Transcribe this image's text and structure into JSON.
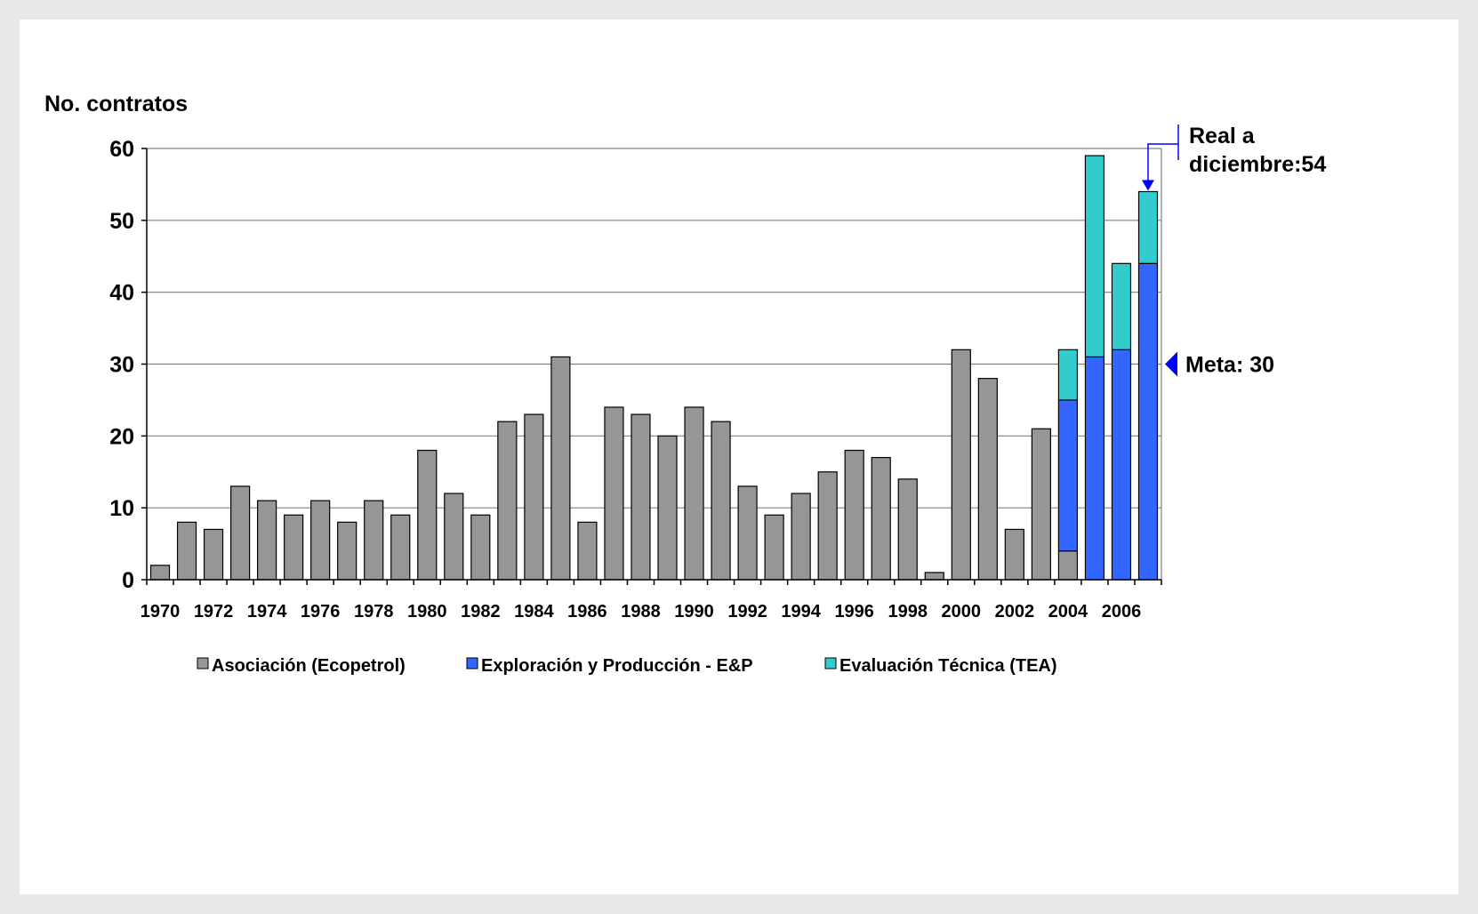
{
  "chart_data": {
    "type": "bar",
    "stacked": true,
    "ylabel": "No. contratos",
    "xlabel": "",
    "ylim": [
      0,
      60
    ],
    "yticks": [
      0,
      10,
      20,
      30,
      40,
      50,
      60
    ],
    "grid": true,
    "legend_position": "bottom",
    "categories": [
      1970,
      1971,
      1972,
      1973,
      1974,
      1975,
      1976,
      1977,
      1978,
      1979,
      1980,
      1981,
      1982,
      1983,
      1984,
      1985,
      1986,
      1987,
      1988,
      1989,
      1990,
      1991,
      1992,
      1993,
      1994,
      1995,
      1996,
      1997,
      1998,
      1999,
      2000,
      2001,
      2002,
      2003,
      2004,
      2005,
      2006,
      2007
    ],
    "xtick_labels": [
      "1970",
      "1972",
      "1974",
      "1976",
      "1978",
      "1980",
      "1982",
      "1984",
      "1986",
      "1988",
      "1990",
      "1992",
      "1994",
      "1996",
      "1998",
      "2000",
      "2002",
      "2004",
      "2006"
    ],
    "series": [
      {
        "name": "Asociación (Ecopetrol)",
        "color": "#969696",
        "values": [
          2,
          8,
          7,
          13,
          11,
          9,
          11,
          8,
          11,
          9,
          18,
          12,
          9,
          22,
          23,
          31,
          8,
          24,
          23,
          20,
          24,
          22,
          13,
          9,
          12,
          15,
          18,
          17,
          14,
          1,
          32,
          28,
          7,
          21,
          4,
          0,
          0,
          0
        ]
      },
      {
        "name": "Exploración y Producción - E&P",
        "color": "#3366ff",
        "values": [
          0,
          0,
          0,
          0,
          0,
          0,
          0,
          0,
          0,
          0,
          0,
          0,
          0,
          0,
          0,
          0,
          0,
          0,
          0,
          0,
          0,
          0,
          0,
          0,
          0,
          0,
          0,
          0,
          0,
          0,
          0,
          0,
          0,
          0,
          21,
          31,
          32,
          44
        ]
      },
      {
        "name": "Evaluación Técnica (TEA)",
        "color": "#33cccc",
        "values": [
          0,
          0,
          0,
          0,
          0,
          0,
          0,
          0,
          0,
          0,
          0,
          0,
          0,
          0,
          0,
          0,
          0,
          0,
          0,
          0,
          0,
          0,
          0,
          0,
          0,
          0,
          0,
          0,
          0,
          0,
          0,
          0,
          0,
          0,
          7,
          28,
          12,
          10
        ]
      }
    ],
    "annotations": {
      "real_line1": "Real a",
      "real_line2": "diciembre:54",
      "real_value": 54,
      "meta_label": "Meta:  30",
      "meta_value": 30,
      "arrow_color": "#0000ff"
    }
  }
}
